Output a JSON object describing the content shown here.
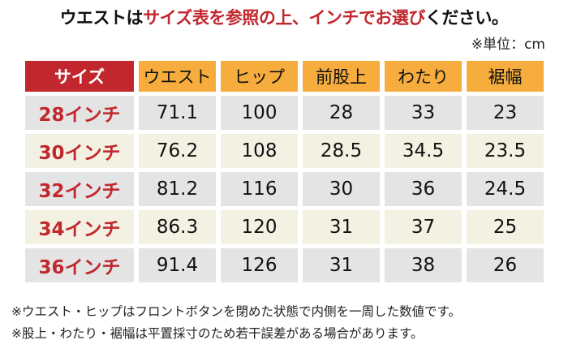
{
  "title": {
    "part1": "ウエストは",
    "part2": "サイズ表を参照の上、インチでお選び",
    "part3": "ください。"
  },
  "unit": "※単位：cm",
  "colors": {
    "red": "#c1272d",
    "orange": "#f7ad3d",
    "row_gray": "#e4e4e4",
    "row_cream": "#f3f1e2"
  },
  "headers": [
    "サイズ",
    "ウエスト",
    "ヒップ",
    "前股上",
    "わたり",
    "裾幅"
  ],
  "rows": [
    [
      "28インチ",
      "71.1",
      "100",
      "28",
      "33",
      "23"
    ],
    [
      "30インチ",
      "76.2",
      "108",
      "28.5",
      "34.5",
      "23.5"
    ],
    [
      "32インチ",
      "81.2",
      "116",
      "30",
      "36",
      "24.5"
    ],
    [
      "34インチ",
      "86.3",
      "120",
      "31",
      "37",
      "25"
    ],
    [
      "36インチ",
      "91.4",
      "126",
      "31",
      "38",
      "26"
    ]
  ],
  "notes": [
    "※ウエスト・ヒップはフロントボタンを閉めた状態で内側を一周した数値です。",
    "※股上・わたり・裾幅は平置採寸のため若干誤差がある場合があります。"
  ]
}
